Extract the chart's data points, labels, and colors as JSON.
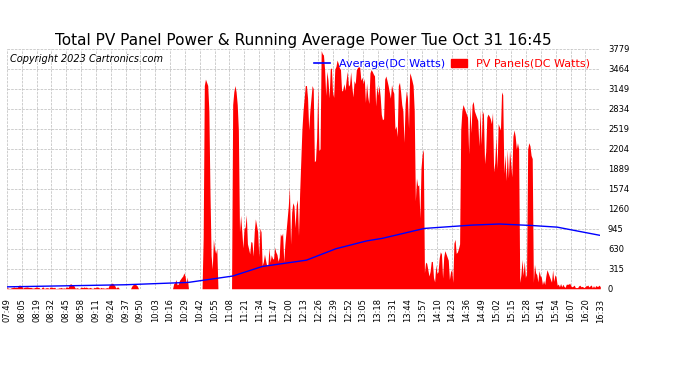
{
  "title": "Total PV Panel Power & Running Average Power Tue Oct 31 16:45",
  "copyright": "Copyright 2023 Cartronics.com",
  "y_max": 3778.8,
  "y_min": 0.0,
  "y_ticks": [
    0.0,
    314.9,
    629.8,
    944.7,
    1259.6,
    1574.5,
    1889.4,
    2204.3,
    2519.2,
    2834.1,
    3149.0,
    3463.9,
    3778.8
  ],
  "legend_avg_label": "Average(DC Watts)",
  "legend_pv_label": "PV Panels(DC Watts)",
  "legend_avg_color": "blue",
  "legend_pv_color": "red",
  "background_color": "white",
  "title_color": "black",
  "copyright_color": "black",
  "grid_color": "#bbbbbb",
  "fill_color": "red",
  "line_color": "blue",
  "x_tick_labels": [
    "07:49",
    "08:05",
    "08:19",
    "08:32",
    "08:45",
    "08:58",
    "09:11",
    "09:24",
    "09:37",
    "09:50",
    "10:03",
    "10:16",
    "10:29",
    "10:42",
    "10:55",
    "11:08",
    "11:21",
    "11:34",
    "11:47",
    "12:00",
    "12:13",
    "12:26",
    "12:39",
    "12:52",
    "13:05",
    "13:18",
    "13:31",
    "13:44",
    "13:57",
    "14:10",
    "14:23",
    "14:36",
    "14:49",
    "15:02",
    "15:15",
    "15:28",
    "15:41",
    "15:54",
    "16:07",
    "16:20",
    "16:33"
  ],
  "title_fontsize": 11,
  "copyright_fontsize": 7,
  "tick_fontsize": 6,
  "legend_fontsize": 8
}
